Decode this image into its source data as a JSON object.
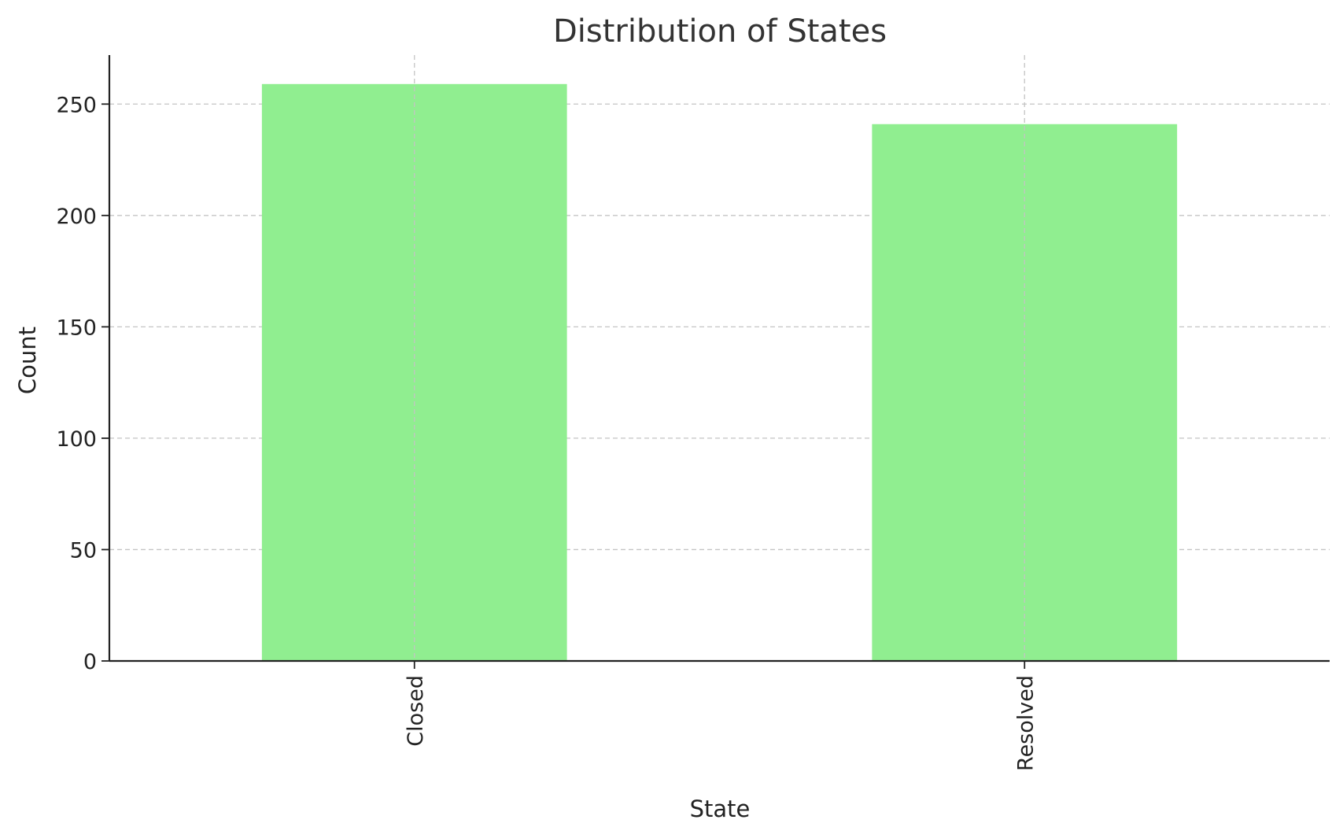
{
  "chart_data": {
    "type": "bar",
    "title": "Distribution of States",
    "xlabel": "State",
    "ylabel": "Count",
    "categories": [
      "Closed",
      "Resolved"
    ],
    "values": [
      259,
      241
    ],
    "ylim": [
      0,
      272
    ],
    "yticks": [
      0,
      50,
      100,
      150,
      200,
      250
    ],
    "grid": true,
    "bar_color": "#90ee90",
    "x_tick_rotation": "vertical"
  }
}
